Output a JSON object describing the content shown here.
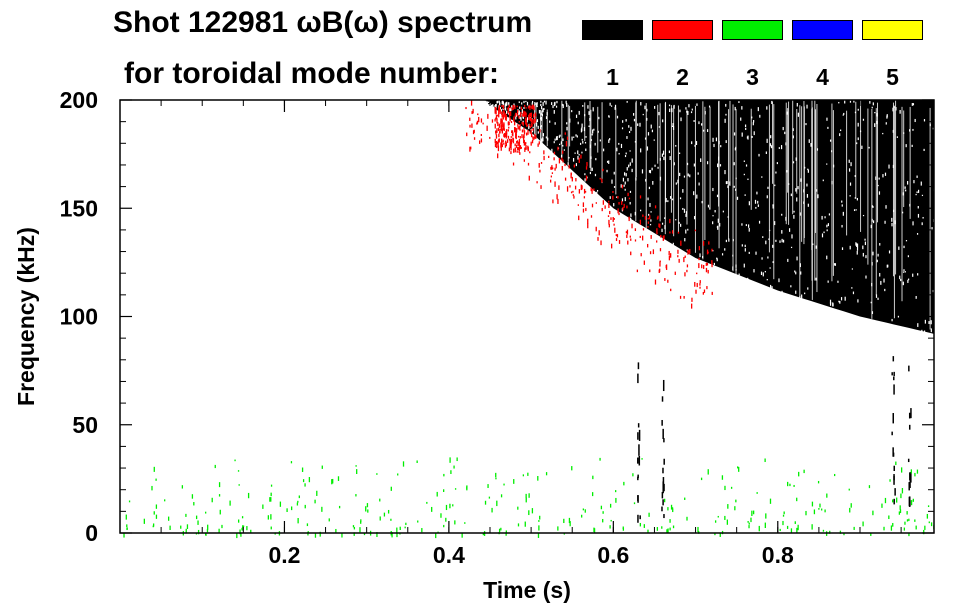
{
  "header": {
    "title_line1": "Shot 122981 ωB(ω) spectrum",
    "title_line2": "for toroidal mode number:"
  },
  "legend": [
    {
      "mode": "1",
      "color": "#000000"
    },
    {
      "mode": "2",
      "color": "#ff0000"
    },
    {
      "mode": "3",
      "color": "#00ee00"
    },
    {
      "mode": "4",
      "color": "#0000ff"
    },
    {
      "mode": "5",
      "color": "#ffff00"
    }
  ],
  "chart_data": {
    "type": "heatmap",
    "title": "Shot 122981 ωB(ω) spectrum",
    "xlabel": "Time (s)",
    "ylabel": "Frequency (kHz)",
    "xlim": [
      0.0,
      0.99
    ],
    "ylim": [
      0,
      200
    ],
    "x_ticks": [
      0.2,
      0.4,
      0.6,
      0.8
    ],
    "x_tick_labels": [
      "0.2",
      "0.4",
      "0.6",
      "0.8"
    ],
    "y_ticks": [
      0,
      50,
      100,
      150,
      200
    ],
    "y_tick_labels": [
      "0",
      "50",
      "100",
      "150",
      "200"
    ],
    "legend_title": "for toroidal mode number:",
    "legend_placement": "top",
    "series": [
      {
        "name": "1",
        "color": "#000000",
        "regions": [
          {
            "kind": "band",
            "t": [
              0.44,
              0.5,
              0.6,
              0.7,
              0.8,
              0.9,
              0.99
            ],
            "f_low": [
              200,
              185,
              150,
              127,
              112,
              100,
              92
            ],
            "f_high": [
              200,
              200,
              200,
              200,
              200,
              200,
              200
            ]
          },
          {
            "kind": "vertical_streaks",
            "t": [
              0.63,
              0.66,
              0.94,
              0.96
            ],
            "f_range": [
              5,
              85
            ]
          }
        ]
      },
      {
        "name": "2",
        "color": "#ff0000",
        "regions": [
          {
            "kind": "scatter",
            "t_range": [
              0.42,
              0.72
            ],
            "f_range": [
              110,
              200
            ],
            "peak": [
              0.48,
              188
            ]
          }
        ]
      },
      {
        "name": "3",
        "color": "#00ee00",
        "regions": [
          {
            "kind": "scatter",
            "t_range": [
              0.0,
              0.99
            ],
            "f_range": [
              0,
              35
            ]
          }
        ]
      },
      {
        "name": "4",
        "color": "#0000ff",
        "regions": []
      },
      {
        "name": "5",
        "color": "#ffff00",
        "regions": []
      }
    ]
  }
}
